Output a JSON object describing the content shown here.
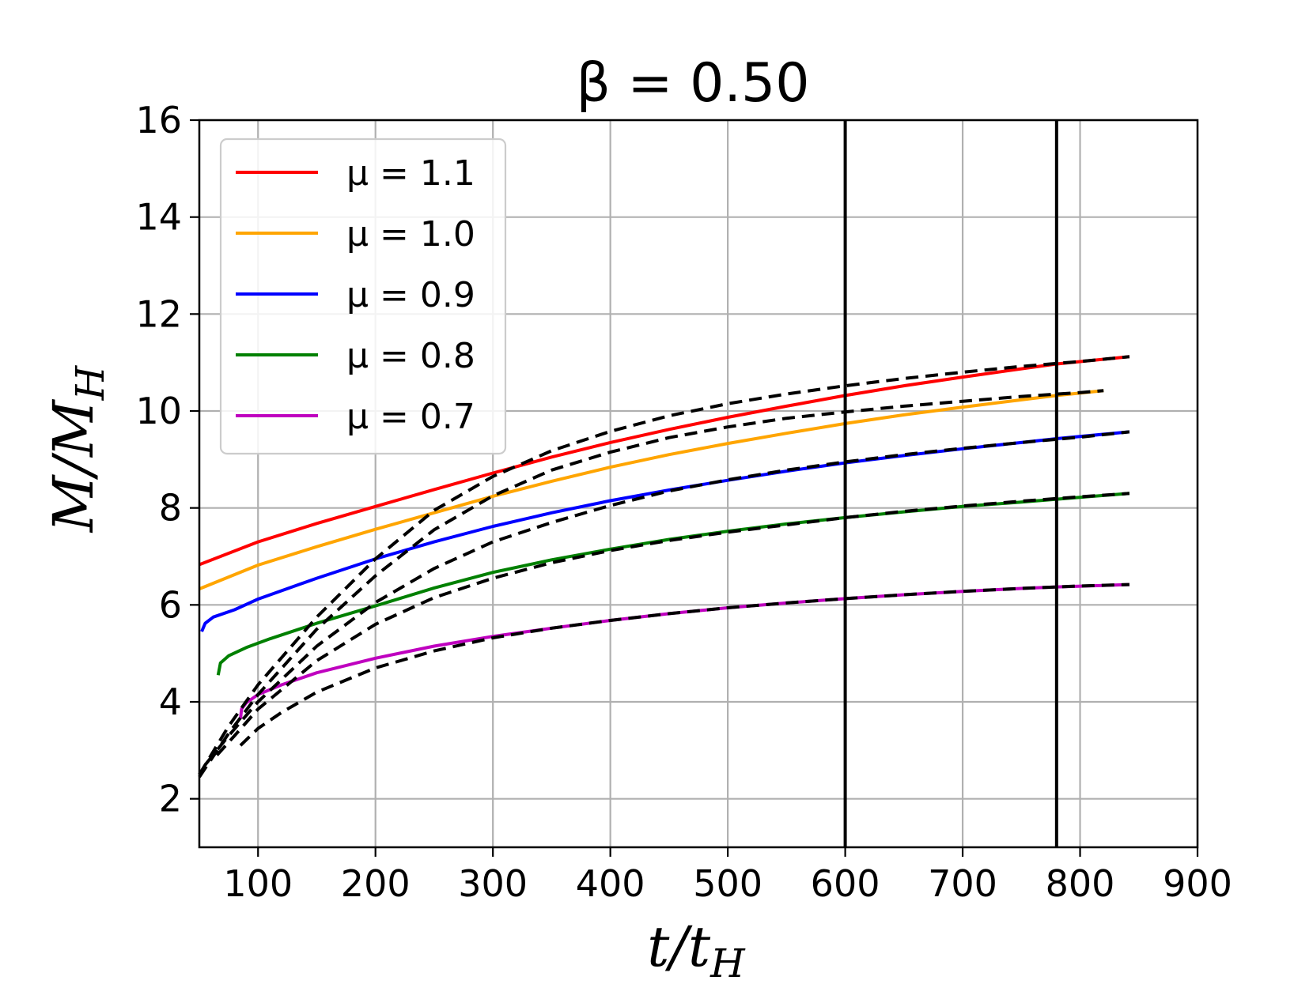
{
  "chart_data": {
    "type": "line",
    "title": "β = 0.50",
    "xlabel": "t/t",
    "xlabel_sub": "H",
    "ylabel": "M/M",
    "ylabel_sub": "H",
    "xlim": [
      50,
      900
    ],
    "ylim": [
      1,
      16
    ],
    "xticks": [
      100,
      200,
      300,
      400,
      500,
      600,
      700,
      800,
      900
    ],
    "yticks": [
      2,
      4,
      6,
      8,
      10,
      12,
      14,
      16
    ],
    "grid": true,
    "legend_position": "top-left",
    "vertical_lines": [
      600,
      780
    ],
    "series": [
      {
        "name": "μ = 1.1",
        "color": "#ff0000",
        "x": [
          50,
          100,
          150,
          200,
          250,
          300,
          350,
          400,
          450,
          500,
          550,
          600,
          650,
          700,
          750,
          780,
          842
        ],
        "y": [
          6.83,
          7.3,
          7.68,
          8.03,
          8.38,
          8.72,
          9.05,
          9.35,
          9.62,
          9.87,
          10.1,
          10.32,
          10.52,
          10.7,
          10.87,
          10.97,
          11.12
        ]
      },
      {
        "name": "μ = 1.0",
        "color": "#ffa500",
        "x": [
          50,
          100,
          150,
          200,
          250,
          300,
          350,
          400,
          450,
          500,
          550,
          600,
          650,
          700,
          750,
          780,
          820
        ],
        "y": [
          6.33,
          6.82,
          7.2,
          7.56,
          7.9,
          8.24,
          8.55,
          8.84,
          9.1,
          9.33,
          9.54,
          9.74,
          9.92,
          10.08,
          10.23,
          10.32,
          10.42
        ]
      },
      {
        "name": "μ = 0.9",
        "color": "#0000ff",
        "x": [
          52,
          55,
          62,
          80,
          100,
          150,
          200,
          250,
          300,
          350,
          400,
          450,
          500,
          550,
          600,
          650,
          700,
          750,
          780,
          842
        ],
        "y": [
          5.45,
          5.62,
          5.75,
          5.9,
          6.12,
          6.55,
          6.95,
          7.3,
          7.62,
          7.9,
          8.15,
          8.37,
          8.57,
          8.76,
          8.93,
          9.08,
          9.22,
          9.35,
          9.43,
          9.57
        ]
      },
      {
        "name": "μ = 0.8",
        "color": "#008000",
        "x": [
          66,
          68,
          75,
          90,
          110,
          150,
          200,
          250,
          300,
          350,
          400,
          450,
          500,
          550,
          600,
          650,
          700,
          750,
          780,
          842
        ],
        "y": [
          4.55,
          4.8,
          4.95,
          5.12,
          5.3,
          5.62,
          5.98,
          6.35,
          6.67,
          6.93,
          7.15,
          7.35,
          7.52,
          7.67,
          7.8,
          7.92,
          8.03,
          8.12,
          8.18,
          8.3
        ]
      },
      {
        "name": "μ = 0.7",
        "color": "#bf00bf",
        "x": [
          85,
          86,
          90,
          100,
          120,
          150,
          200,
          250,
          300,
          350,
          400,
          450,
          500,
          550,
          600,
          650,
          700,
          750,
          780,
          842
        ],
        "y": [
          3.65,
          3.85,
          3.98,
          4.15,
          4.35,
          4.6,
          4.9,
          5.15,
          5.35,
          5.52,
          5.68,
          5.82,
          5.94,
          6.04,
          6.13,
          6.21,
          6.28,
          6.34,
          6.37,
          6.42
        ]
      }
    ],
    "fits": [
      {
        "x": [
          50,
          75,
          100,
          150,
          200,
          250,
          300,
          350,
          400,
          450,
          500,
          550,
          600,
          650,
          700,
          750,
          800,
          842
        ],
        "y": [
          2.5,
          3.5,
          4.35,
          5.75,
          6.95,
          7.95,
          8.65,
          9.18,
          9.58,
          9.9,
          10.15,
          10.35,
          10.52,
          10.67,
          10.8,
          10.92,
          11.02,
          11.12
        ]
      },
      {
        "x": [
          50,
          75,
          100,
          150,
          200,
          250,
          300,
          350,
          400,
          450,
          500,
          550,
          600,
          650,
          700,
          750,
          800,
          820
        ],
        "y": [
          2.45,
          3.35,
          4.15,
          5.5,
          6.6,
          7.55,
          8.25,
          8.78,
          9.15,
          9.45,
          9.67,
          9.85,
          9.98,
          10.1,
          10.2,
          10.3,
          10.38,
          10.42
        ]
      },
      {
        "x": [
          55,
          75,
          100,
          150,
          200,
          250,
          300,
          350,
          400,
          450,
          500,
          550,
          600,
          650,
          700,
          750,
          800,
          842
        ],
        "y": [
          2.7,
          3.3,
          4.0,
          5.15,
          6.05,
          6.75,
          7.3,
          7.7,
          8.05,
          8.35,
          8.58,
          8.78,
          8.95,
          9.1,
          9.23,
          9.35,
          9.46,
          9.57
        ]
      },
      {
        "x": [
          65,
          80,
          100,
          150,
          200,
          250,
          300,
          350,
          400,
          450,
          500,
          550,
          600,
          650,
          700,
          750,
          800,
          842
        ],
        "y": [
          2.9,
          3.3,
          3.85,
          4.85,
          5.6,
          6.15,
          6.55,
          6.87,
          7.12,
          7.33,
          7.5,
          7.65,
          7.8,
          7.93,
          8.04,
          8.14,
          8.23,
          8.3
        ]
      },
      {
        "x": [
          85,
          100,
          120,
          150,
          200,
          250,
          300,
          350,
          400,
          450,
          500,
          550,
          600,
          650,
          700,
          750,
          800,
          842
        ],
        "y": [
          3.1,
          3.45,
          3.78,
          4.2,
          4.7,
          5.05,
          5.32,
          5.52,
          5.68,
          5.82,
          5.94,
          6.04,
          6.13,
          6.21,
          6.28,
          6.34,
          6.39,
          6.42
        ]
      }
    ]
  }
}
